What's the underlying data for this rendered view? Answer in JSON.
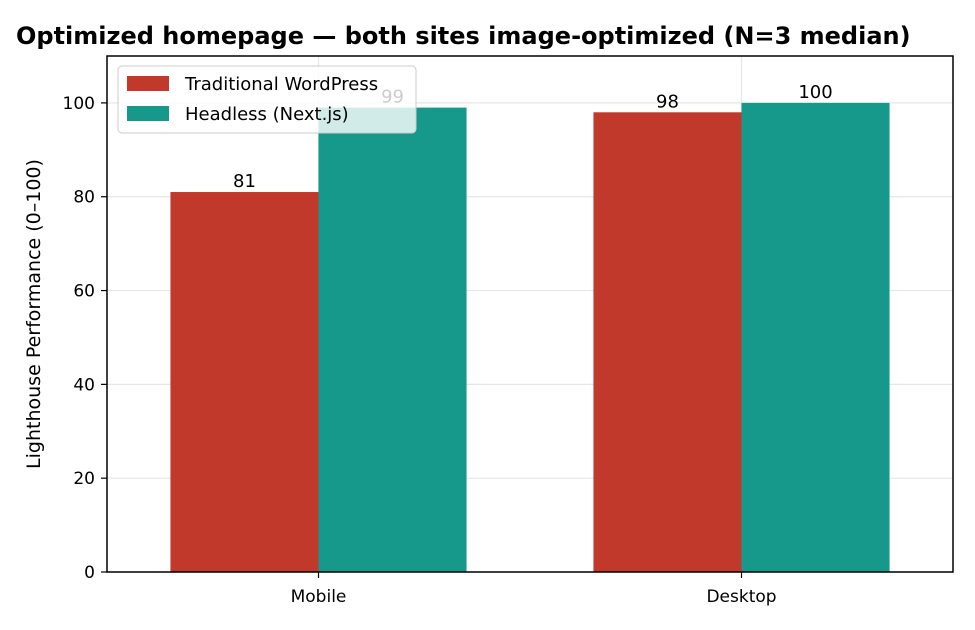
{
  "chart_data": {
    "type": "bar",
    "title": "Optimized homepage — both sites image-optimized (N=3 median)",
    "xlabel": "",
    "ylabel": "Lighthouse Performance (0–100)",
    "categories": [
      "Mobile",
      "Desktop"
    ],
    "series": [
      {
        "name": "Traditional WordPress",
        "values": [
          81,
          98
        ],
        "color": "#c0392b"
      },
      {
        "name": "Headless (Next.js)",
        "values": [
          99,
          100
        ],
        "color": "#16998b"
      }
    ],
    "ylim": [
      0,
      110
    ],
    "yticks": [
      0,
      20,
      40,
      60,
      80,
      100
    ],
    "grid": true,
    "legend_position": "top-left"
  }
}
